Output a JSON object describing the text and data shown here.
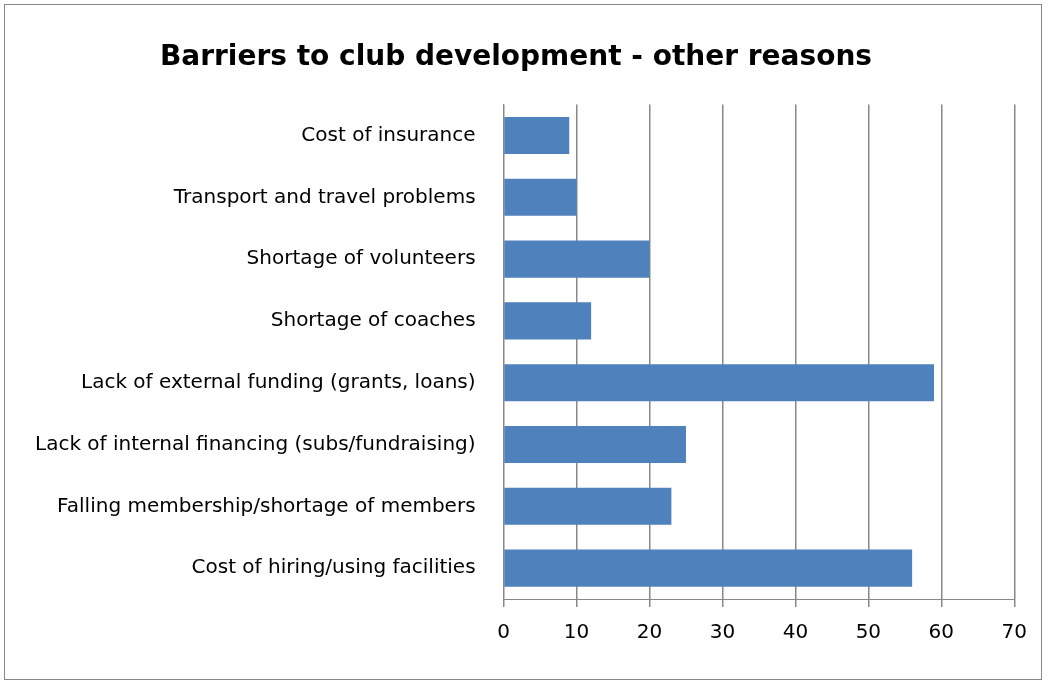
{
  "chart_data": {
    "type": "bar",
    "orientation": "horizontal",
    "title": "Barriers to club development - other reasons",
    "categories": [
      "Cost of insurance",
      "Transport and travel problems",
      "Shortage of volunteers",
      "Shortage of coaches",
      "Lack of external funding (grants, loans)",
      "Lack of internal financing (subs/fundraising)",
      "Falling membership/shortage of members",
      "Cost of hiring/using facilities"
    ],
    "values": [
      9,
      10,
      20,
      12,
      59,
      25,
      23,
      56
    ],
    "color": "#4f81bd",
    "xlim": [
      0,
      70
    ],
    "xticks": [
      0,
      10,
      20,
      30,
      40,
      50,
      60,
      70
    ],
    "grid": "x",
    "legend": false
  }
}
